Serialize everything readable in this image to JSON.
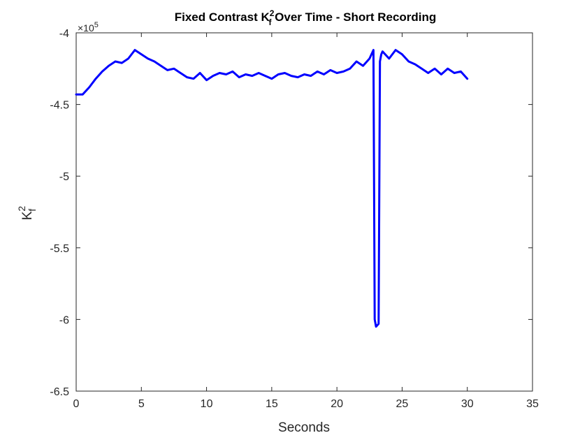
{
  "chart_data": {
    "type": "line",
    "title_prefix": "Fixed Contrast K",
    "title_sup": "2",
    "title_sub": "f",
    "title_suffix": " Over Time - Short Recording",
    "xlabel": "Seconds",
    "ylabel_main": "K",
    "ylabel_sup": "2",
    "ylabel_sub": "f",
    "y_multiplier_base": "×10",
    "y_multiplier_exp": "5",
    "xlim": [
      0,
      35
    ],
    "ylim": [
      -650000,
      -400000
    ],
    "x_ticks": [
      0,
      5,
      10,
      15,
      20,
      25,
      30,
      35
    ],
    "x_tick_labels": [
      "0",
      "5",
      "10",
      "15",
      "20",
      "25",
      "30",
      "35"
    ],
    "y_ticks": [
      -650000,
      -600000,
      -550000,
      -500000,
      -450000,
      -400000
    ],
    "y_tick_labels": [
      "-6.5",
      "-6",
      "-5.5",
      "-5",
      "-4.5",
      "-4"
    ],
    "grid": false,
    "line_color": "#0000ff",
    "series": [
      {
        "x": [
          0,
          0.5,
          1,
          1.5,
          2,
          2.5,
          3,
          3.5,
          4,
          4.5,
          5,
          5.5,
          6,
          6.5,
          7,
          7.5,
          8,
          8.5,
          9,
          9.5,
          10,
          10.5,
          11,
          11.5,
          12,
          12.5,
          13,
          13.5,
          14,
          14.5,
          15,
          15.5,
          16,
          16.5,
          17,
          17.5,
          18,
          18.5,
          19,
          19.5,
          20,
          20.5,
          21,
          21.5,
          22,
          22.5,
          22.8,
          22.9,
          23.0,
          23.2,
          23.3,
          23.4,
          23.5,
          24,
          24.5,
          25,
          25.5,
          26,
          26.5,
          27,
          27.5,
          28,
          28.5,
          29,
          29.5,
          30
        ],
        "y": [
          -443000,
          -443000,
          -438000,
          -432000,
          -427000,
          -423000,
          -420000,
          -421000,
          -418000,
          -412000,
          -415000,
          -418000,
          -420000,
          -423000,
          -426000,
          -425000,
          -428000,
          -431000,
          -432000,
          -428000,
          -433000,
          -430000,
          -428000,
          -429000,
          -427000,
          -431000,
          -429000,
          -430000,
          -428000,
          -430000,
          -432000,
          -429000,
          -428000,
          -430000,
          -431000,
          -429000,
          -430000,
          -427000,
          -429000,
          -426000,
          -428000,
          -427000,
          -425000,
          -420000,
          -423000,
          -418000,
          -412000,
          -600000,
          -605000,
          -603000,
          -420000,
          -415000,
          -413000,
          -418000,
          -412000,
          -415000,
          -420000,
          -422000,
          -425000,
          -428000,
          -425000,
          -429000,
          -425000,
          -428000,
          -427000,
          -432000
        ]
      }
    ]
  }
}
